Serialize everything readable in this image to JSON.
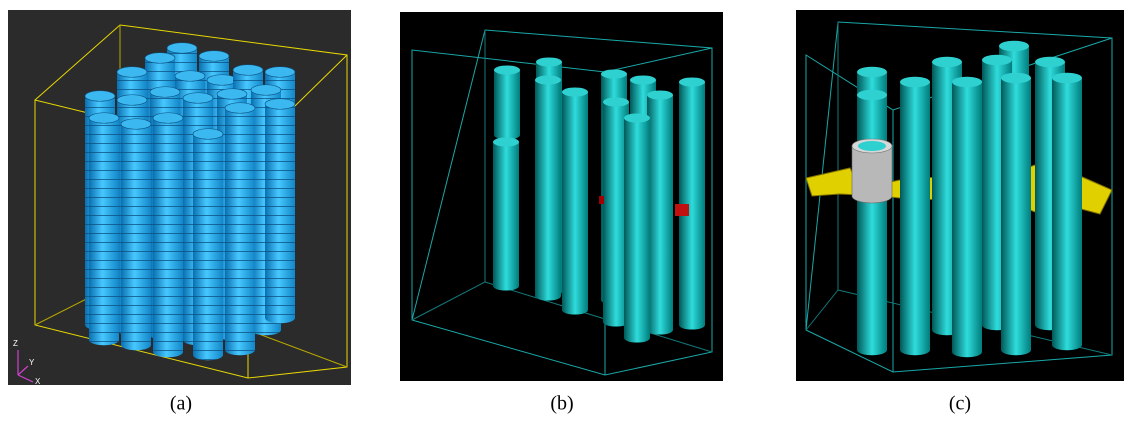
{
  "panels": [
    {
      "caption": "(a)",
      "axis_labels": [
        "Z",
        "Y",
        "X"
      ]
    },
    {
      "caption": "(b)"
    },
    {
      "caption": "(c)"
    }
  ]
}
